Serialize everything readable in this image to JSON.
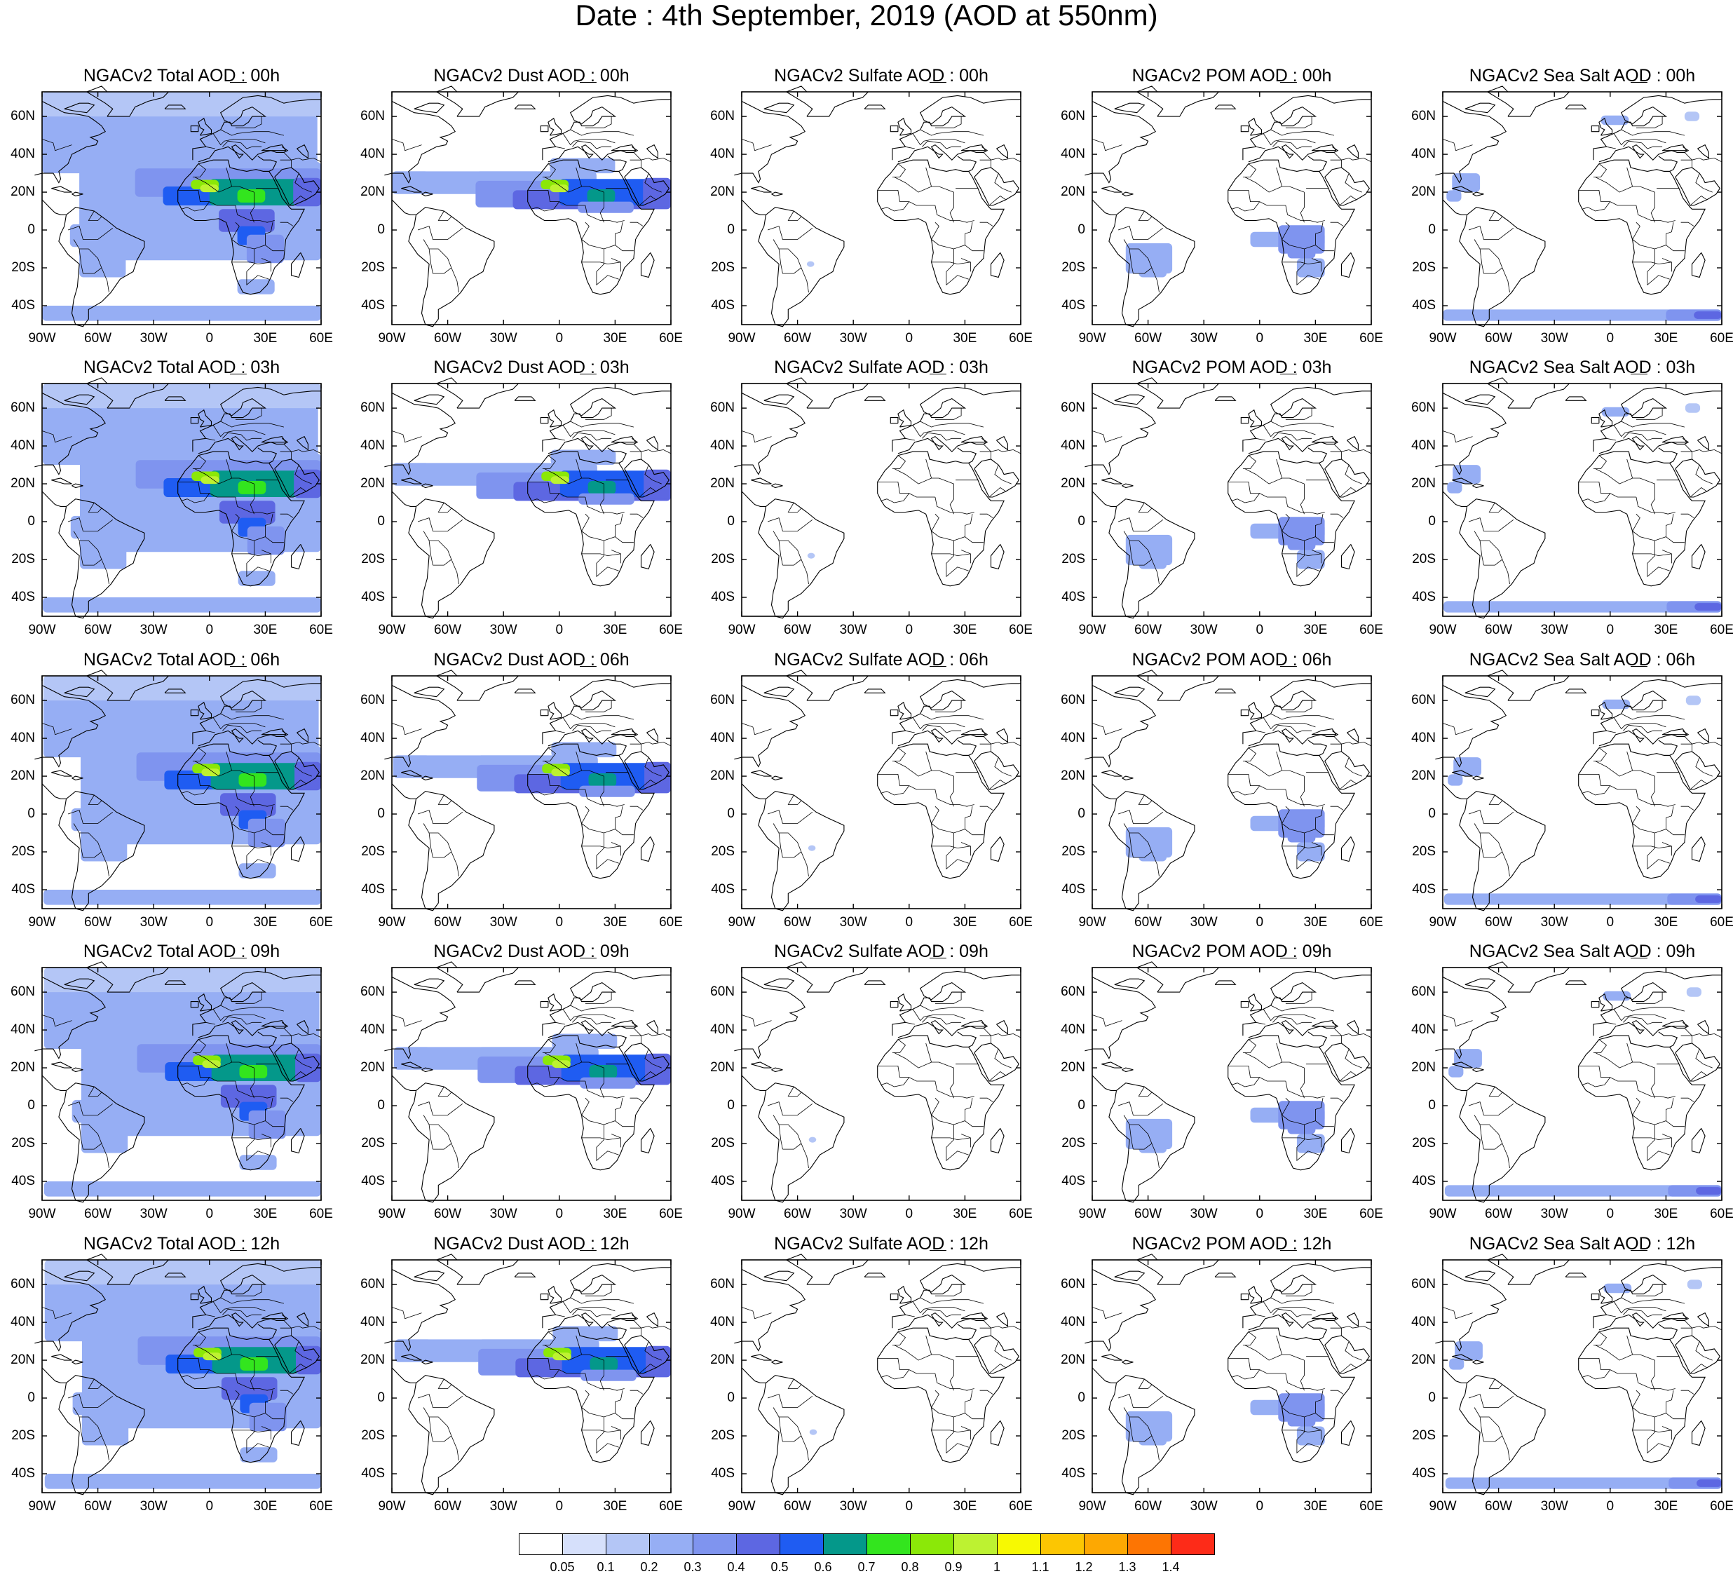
{
  "title": "Date : 4th September, 2019 (AOD at 550nm)",
  "map": {
    "lat_labels": [
      "60N",
      "40N",
      "20N",
      "0",
      "20S",
      "40S"
    ],
    "lat_values": [
      60,
      40,
      20,
      0,
      -20,
      -40
    ],
    "lon_labels": [
      "90W",
      "60W",
      "30W",
      "0",
      "30E",
      "60E"
    ],
    "lon_values": [
      -90,
      -60,
      -30,
      0,
      30,
      60
    ],
    "lon_range": [
      -90,
      60
    ],
    "lat_range": [
      -50,
      73
    ]
  },
  "panels": [
    [
      {
        "title": "NGACv2 Total AOD : 00h",
        "species": "total"
      },
      {
        "title": "NGACv2 Dust AOD : 00h",
        "species": "dust"
      },
      {
        "title": "NGACv2 Sulfate AOD : 00h",
        "species": "sulfate"
      },
      {
        "title": "NGACv2 POM AOD : 00h",
        "species": "pom"
      },
      {
        "title": "NGACv2 Sea Salt AOD : 00h",
        "species": "seasalt"
      }
    ],
    [
      {
        "title": "NGACv2 Total AOD : 03h",
        "species": "total"
      },
      {
        "title": "NGACv2 Dust AOD : 03h",
        "species": "dust"
      },
      {
        "title": "NGACv2 Sulfate AOD : 03h",
        "species": "sulfate"
      },
      {
        "title": "NGACv2 POM AOD : 03h",
        "species": "pom"
      },
      {
        "title": "NGACv2 Sea Salt AOD : 03h",
        "species": "seasalt"
      }
    ],
    [
      {
        "title": "NGACv2 Total AOD : 06h",
        "species": "total"
      },
      {
        "title": "NGACv2 Dust AOD : 06h",
        "species": "dust"
      },
      {
        "title": "NGACv2 Sulfate AOD : 06h",
        "species": "sulfate"
      },
      {
        "title": "NGACv2 POM AOD : 06h",
        "species": "pom"
      },
      {
        "title": "NGACv2 Sea Salt AOD : 06h",
        "species": "seasalt"
      }
    ],
    [
      {
        "title": "NGACv2 Total AOD : 09h",
        "species": "total"
      },
      {
        "title": "NGACv2 Dust AOD : 09h",
        "species": "dust"
      },
      {
        "title": "NGACv2 Sulfate AOD : 09h",
        "species": "sulfate"
      },
      {
        "title": "NGACv2 POM AOD : 09h",
        "species": "pom"
      },
      {
        "title": "NGACv2 Sea Salt  AOD : 09h",
        "species": "seasalt"
      }
    ],
    [
      {
        "title": "NGACv2 Total AOD  : 12h",
        "species": "total"
      },
      {
        "title": "NGACv2 Dust AOD : 12h",
        "species": "dust"
      },
      {
        "title": "NGACv2 Sulfate AOD : 12h",
        "species": "sulfate"
      },
      {
        "title": "NGACv2 POM  AOD : 12h",
        "species": "pom"
      },
      {
        "title": "NGACv2 Sea Salt  AOD : 12h",
        "species": "seasalt"
      }
    ]
  ],
  "colorbar": {
    "labels": [
      "0.05",
      "0.1",
      "0.2",
      "0.3",
      "0.4",
      "0.5",
      "0.6",
      "0.7",
      "0.8",
      "0.9",
      "1",
      "1.1",
      "1.2",
      "1.3",
      "1.4"
    ],
    "colors": [
      "#ffffff",
      "#d6e0fb",
      "#b4c6f6",
      "#96aef4",
      "#7f94ef",
      "#5d67e2",
      "#1f5cf2",
      "#04988a",
      "#33e51e",
      "#8be808",
      "#bdf231",
      "#f7f902",
      "#fcc602",
      "#fda802",
      "#fd7503",
      "#fd2b18"
    ]
  }
}
